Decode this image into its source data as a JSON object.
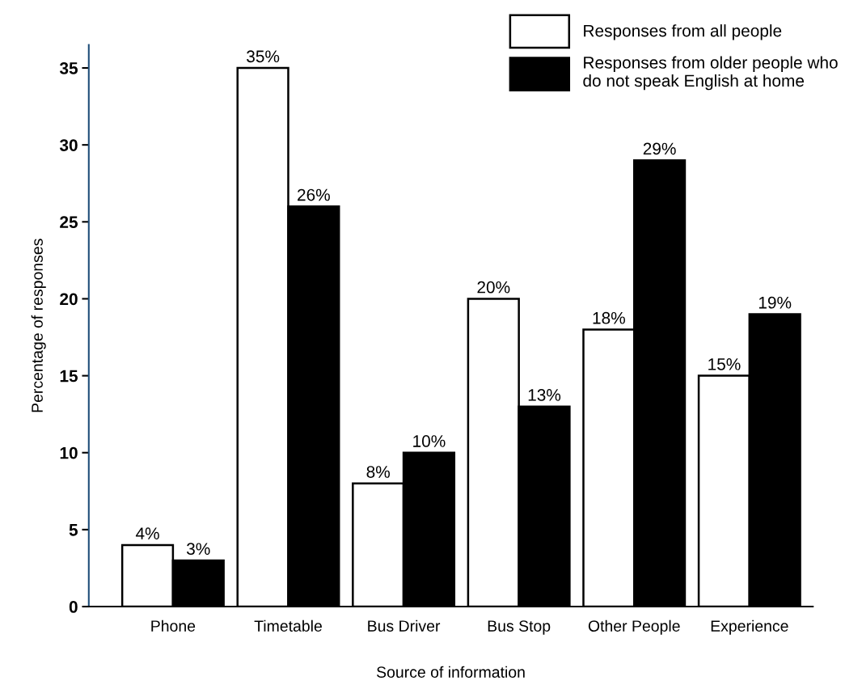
{
  "chart_data": {
    "type": "bar",
    "xlabel": "Source of information",
    "ylabel": "Percentage of responses",
    "categories": [
      "Phone",
      "Timetable",
      "Bus Driver",
      "Bus Stop",
      "Other People",
      "Experience"
    ],
    "series": [
      {
        "name": "Responses from all people",
        "color": "#ffffff",
        "values": [
          4,
          35,
          8,
          20,
          18,
          15
        ],
        "value_labels": [
          "4%",
          "35%",
          "8%",
          "20%",
          "18%",
          "15%"
        ]
      },
      {
        "name": "Responses from older people who\ndo not speak English at home",
        "color": "#000000",
        "values": [
          3,
          26,
          10,
          13,
          29,
          19
        ],
        "value_labels": [
          "3%",
          "26%",
          "10%",
          "13%",
          "29%",
          "19%"
        ]
      }
    ],
    "ylim": [
      0,
      36.5
    ],
    "yticks": [
      0,
      5,
      10,
      15,
      20,
      25,
      30,
      35
    ],
    "grid": false,
    "legend": "top right"
  }
}
